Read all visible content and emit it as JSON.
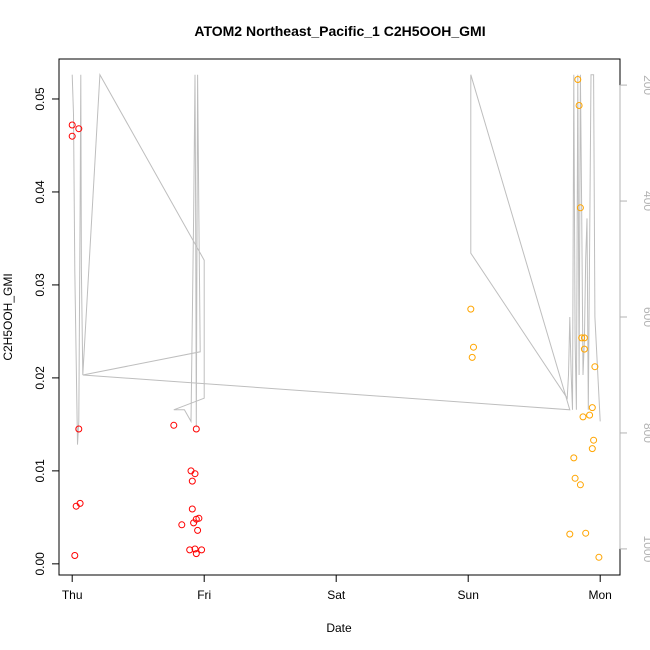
{
  "chart_data": {
    "type": "scatter",
    "title": "ATOM2 Northeast_Pacific_1 C2H5OOH_GMI",
    "xlabel": "Date",
    "ylabel": "C2H5OOH_GMI",
    "x_ticks": [
      "Thu",
      "Fri",
      "Sat",
      "Sun",
      "Mon"
    ],
    "y_ticks": [
      "0.00",
      "0.01",
      "0.02",
      "0.03",
      "0.04",
      "0.05"
    ],
    "y2_ticks": [
      "200",
      "400",
      "600",
      "800",
      "1000"
    ],
    "xlim": [
      -0.1,
      4.15
    ],
    "ylim": [
      -0.0012,
      0.0543
    ],
    "y2lim": [
      1045,
      155
    ],
    "y2_reversed": true,
    "grid": false,
    "colors": {
      "red": "#ff0000",
      "orange": "#ffa500",
      "profile": "#bebebe"
    },
    "series": [
      {
        "color": "red",
        "points": [
          [
            0.0,
            0.0472
          ],
          [
            0.0,
            0.046
          ],
          [
            0.05,
            0.0468
          ],
          [
            0.05,
            0.0145
          ],
          [
            0.03,
            0.0062
          ],
          [
            0.06,
            0.0065
          ],
          [
            0.02,
            0.0009
          ],
          [
            0.77,
            0.0149
          ],
          [
            0.83,
            0.0042
          ],
          [
            0.9,
            0.01
          ],
          [
            0.93,
            0.0097
          ],
          [
            0.94,
            0.0145
          ],
          [
            0.91,
            0.0089
          ],
          [
            0.91,
            0.0059
          ],
          [
            0.94,
            0.0048
          ],
          [
            0.92,
            0.0044
          ],
          [
            0.96,
            0.0049
          ],
          [
            0.95,
            0.0036
          ],
          [
            0.89,
            0.0015
          ],
          [
            0.93,
            0.0016
          ],
          [
            0.94,
            0.0011
          ],
          [
            0.98,
            0.0015
          ]
        ]
      },
      {
        "color": "orange",
        "points": [
          [
            3.02,
            0.0274
          ],
          [
            3.04,
            0.0233
          ],
          [
            3.03,
            0.0222
          ],
          [
            3.83,
            0.0521
          ],
          [
            3.84,
            0.0493
          ],
          [
            3.85,
            0.0383
          ],
          [
            3.86,
            0.0243
          ],
          [
            3.88,
            0.0243
          ],
          [
            3.88,
            0.0231
          ],
          [
            3.96,
            0.0212
          ],
          [
            3.94,
            0.0168
          ],
          [
            3.92,
            0.016
          ],
          [
            3.87,
            0.0158
          ],
          [
            3.8,
            0.0114
          ],
          [
            3.95,
            0.0133
          ],
          [
            3.94,
            0.0124
          ],
          [
            3.81,
            0.0092
          ],
          [
            3.85,
            0.0085
          ],
          [
            3.77,
            0.0032
          ],
          [
            3.89,
            0.0033
          ],
          [
            3.99,
            0.0007
          ]
        ]
      }
    ],
    "pressure_profile": [
      [
        0.0,
        182
      ],
      [
        0.01,
        250
      ],
      [
        0.02,
        520
      ],
      [
        0.04,
        820
      ],
      [
        0.05,
        780
      ],
      [
        0.06,
        420
      ],
      [
        0.065,
        182
      ],
      [
        0.07,
        520
      ],
      [
        0.08,
        700
      ],
      [
        0.21,
        182
      ],
      [
        1.0,
        502
      ],
      [
        1.0,
        740
      ],
      [
        0.77,
        760
      ],
      [
        0.85,
        760
      ],
      [
        0.9,
        780
      ],
      [
        0.92,
        430
      ],
      [
        0.93,
        182
      ],
      [
        0.935,
        400
      ],
      [
        0.94,
        790
      ],
      [
        0.95,
        182
      ],
      [
        0.96,
        430
      ],
      [
        0.97,
        660
      ],
      [
        0.08,
        700
      ],
      [
        3.77,
        760
      ],
      [
        3.02,
        182
      ],
      [
        3.02,
        490
      ],
      [
        3.75,
        740
      ],
      [
        3.76,
        700
      ],
      [
        3.77,
        600
      ],
      [
        3.78,
        700
      ],
      [
        3.79,
        760
      ],
      [
        3.8,
        182
      ],
      [
        3.81,
        640
      ],
      [
        3.82,
        760
      ],
      [
        3.83,
        182
      ],
      [
        3.84,
        700
      ],
      [
        3.85,
        182
      ],
      [
        3.86,
        420
      ],
      [
        3.87,
        700
      ],
      [
        3.88,
        640
      ],
      [
        3.89,
        500
      ],
      [
        3.9,
        430
      ],
      [
        3.91,
        760
      ],
      [
        3.93,
        182
      ],
      [
        3.95,
        182
      ],
      [
        3.96,
        600
      ],
      [
        4.0,
        780
      ]
    ]
  }
}
